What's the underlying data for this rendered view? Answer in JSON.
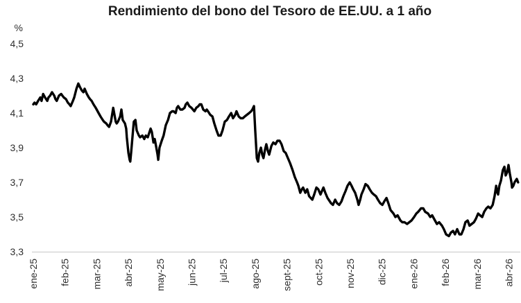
{
  "chart_data": {
    "type": "line",
    "title": "Rendimiento del bono del Tesoro de EE.UU. a 1 año",
    "xlabel": "",
    "ylabel": "%",
    "grid": false,
    "legend": "none",
    "background_color": "#ffffff",
    "line_color": "#000000",
    "axis_line_color": "#d0d0d0",
    "text_color": "#2e2e2e",
    "title_color": "#1a1a1a",
    "y_axis": {
      "unit_label": "%",
      "decimal_separator": ",",
      "tick_labels": [
        "4,5",
        "4,3",
        "4,1",
        "3,9",
        "3,7",
        "3,5",
        "3,3"
      ],
      "tick_values": [
        4.5,
        4.3,
        4.1,
        3.9,
        3.7,
        3.5,
        3.3
      ],
      "ylim": [
        3.3,
        4.5
      ]
    },
    "x_axis": {
      "unit": "month",
      "tick_labels": [
        "ene-25",
        "feb-25",
        "mar-25",
        "abr-25",
        "may-25",
        "jun-25",
        "jul-25",
        "ago-25",
        "sept-25",
        "oct-25",
        "nov-25",
        "dic-25",
        "ene-26",
        "feb-26",
        "mar-26",
        "abr-26"
      ],
      "xlim_month_index": [
        0,
        15.29
      ]
    },
    "series": [
      {
        "x_unit": "months since ene-25",
        "y_unit": "percent",
        "points": [
          [
            0.0,
            4.15
          ],
          [
            0.04,
            4.16
          ],
          [
            0.09,
            4.15
          ],
          [
            0.15,
            4.17
          ],
          [
            0.22,
            4.19
          ],
          [
            0.26,
            4.17
          ],
          [
            0.31,
            4.21
          ],
          [
            0.37,
            4.19
          ],
          [
            0.44,
            4.17
          ],
          [
            0.48,
            4.19
          ],
          [
            0.53,
            4.2
          ],
          [
            0.59,
            4.22
          ],
          [
            0.66,
            4.2
          ],
          [
            0.7,
            4.18
          ],
          [
            0.74,
            4.17
          ],
          [
            0.81,
            4.2
          ],
          [
            0.88,
            4.21
          ],
          [
            0.92,
            4.2
          ],
          [
            0.96,
            4.19
          ],
          [
            1.03,
            4.18
          ],
          [
            1.09,
            4.16
          ],
          [
            1.14,
            4.15
          ],
          [
            1.18,
            4.14
          ],
          [
            1.25,
            4.17
          ],
          [
            1.29,
            4.19
          ],
          [
            1.36,
            4.24
          ],
          [
            1.42,
            4.27
          ],
          [
            1.47,
            4.25
          ],
          [
            1.53,
            4.23
          ],
          [
            1.58,
            4.22
          ],
          [
            1.62,
            4.24
          ],
          [
            1.69,
            4.21
          ],
          [
            1.75,
            4.19
          ],
          [
            1.79,
            4.18
          ],
          [
            1.84,
            4.17
          ],
          [
            1.9,
            4.15
          ],
          [
            1.97,
            4.13
          ],
          [
            2.06,
            4.1
          ],
          [
            2.12,
            4.08
          ],
          [
            2.19,
            4.06
          ],
          [
            2.23,
            4.05
          ],
          [
            2.3,
            4.04
          ],
          [
            2.34,
            4.03
          ],
          [
            2.39,
            4.02
          ],
          [
            2.45,
            4.05
          ],
          [
            2.52,
            4.13
          ],
          [
            2.56,
            4.09
          ],
          [
            2.6,
            4.05
          ],
          [
            2.63,
            4.04
          ],
          [
            2.67,
            4.05
          ],
          [
            2.74,
            4.08
          ],
          [
            2.78,
            4.12
          ],
          [
            2.82,
            4.06
          ],
          [
            2.89,
            4.04
          ],
          [
            2.93,
            4.01
          ],
          [
            2.95,
            3.96
          ],
          [
            3.0,
            3.87
          ],
          [
            3.04,
            3.83
          ],
          [
            3.06,
            3.82
          ],
          [
            3.09,
            3.88
          ],
          [
            3.15,
            4.01
          ],
          [
            3.17,
            4.05
          ],
          [
            3.22,
            4.06
          ],
          [
            3.26,
            4.0
          ],
          [
            3.33,
            3.97
          ],
          [
            3.37,
            3.96
          ],
          [
            3.44,
            3.97
          ],
          [
            3.5,
            3.95
          ],
          [
            3.55,
            3.97
          ],
          [
            3.61,
            3.96
          ],
          [
            3.7,
            4.01
          ],
          [
            3.74,
            3.99
          ],
          [
            3.79,
            3.93
          ],
          [
            3.83,
            3.95
          ],
          [
            3.87,
            3.91
          ],
          [
            3.92,
            3.86
          ],
          [
            3.94,
            3.83
          ],
          [
            3.98,
            3.9
          ],
          [
            4.05,
            3.94
          ],
          [
            4.11,
            3.97
          ],
          [
            4.18,
            4.03
          ],
          [
            4.25,
            4.06
          ],
          [
            4.31,
            4.1
          ],
          [
            4.38,
            4.11
          ],
          [
            4.42,
            4.11
          ],
          [
            4.49,
            4.1
          ],
          [
            4.53,
            4.13
          ],
          [
            4.57,
            4.14
          ],
          [
            4.64,
            4.12
          ],
          [
            4.7,
            4.12
          ],
          [
            4.77,
            4.13
          ],
          [
            4.81,
            4.15
          ],
          [
            4.86,
            4.16
          ],
          [
            4.92,
            4.14
          ],
          [
            4.99,
            4.13
          ],
          [
            5.08,
            4.11
          ],
          [
            5.14,
            4.13
          ],
          [
            5.21,
            4.14
          ],
          [
            5.25,
            4.15
          ],
          [
            5.3,
            4.15
          ],
          [
            5.36,
            4.12
          ],
          [
            5.43,
            4.11
          ],
          [
            5.47,
            4.12
          ],
          [
            5.51,
            4.11
          ],
          [
            5.58,
            4.09
          ],
          [
            5.65,
            4.08
          ],
          [
            5.71,
            4.04
          ],
          [
            5.78,
            4.0
          ],
          [
            5.84,
            3.97
          ],
          [
            5.91,
            3.97
          ],
          [
            5.97,
            4.0
          ],
          [
            6.04,
            4.05
          ],
          [
            6.11,
            4.06
          ],
          [
            6.17,
            4.08
          ],
          [
            6.24,
            4.1
          ],
          [
            6.3,
            4.07
          ],
          [
            6.37,
            4.09
          ],
          [
            6.41,
            4.11
          ],
          [
            6.48,
            4.08
          ],
          [
            6.54,
            4.07
          ],
          [
            6.61,
            4.07
          ],
          [
            6.67,
            4.08
          ],
          [
            6.74,
            4.09
          ],
          [
            6.81,
            4.1
          ],
          [
            6.87,
            4.11
          ],
          [
            6.91,
            4.12
          ],
          [
            6.96,
            4.14
          ],
          [
            7.0,
            4.0
          ],
          [
            7.05,
            3.84
          ],
          [
            7.09,
            3.82
          ],
          [
            7.13,
            3.87
          ],
          [
            7.18,
            3.9
          ],
          [
            7.22,
            3.86
          ],
          [
            7.26,
            3.84
          ],
          [
            7.31,
            3.89
          ],
          [
            7.35,
            3.92
          ],
          [
            7.4,
            3.88
          ],
          [
            7.44,
            3.86
          ],
          [
            7.51,
            3.91
          ],
          [
            7.57,
            3.93
          ],
          [
            7.64,
            3.92
          ],
          [
            7.7,
            3.94
          ],
          [
            7.77,
            3.94
          ],
          [
            7.83,
            3.92
          ],
          [
            7.9,
            3.88
          ],
          [
            7.96,
            3.87
          ],
          [
            8.03,
            3.84
          ],
          [
            8.1,
            3.81
          ],
          [
            8.14,
            3.79
          ],
          [
            8.18,
            3.77
          ],
          [
            8.25,
            3.73
          ],
          [
            8.32,
            3.7
          ],
          [
            8.36,
            3.68
          ],
          [
            8.42,
            3.64
          ],
          [
            8.47,
            3.66
          ],
          [
            8.51,
            3.67
          ],
          [
            8.58,
            3.64
          ],
          [
            8.64,
            3.66
          ],
          [
            8.7,
            3.62
          ],
          [
            8.8,
            3.6
          ],
          [
            8.86,
            3.63
          ],
          [
            8.93,
            3.67
          ],
          [
            8.99,
            3.66
          ],
          [
            9.06,
            3.63
          ],
          [
            9.15,
            3.67
          ],
          [
            9.21,
            3.64
          ],
          [
            9.28,
            3.61
          ],
          [
            9.39,
            3.58
          ],
          [
            9.45,
            3.57
          ],
          [
            9.52,
            3.6
          ],
          [
            9.58,
            3.58
          ],
          [
            9.65,
            3.57
          ],
          [
            9.72,
            3.59
          ],
          [
            9.78,
            3.62
          ],
          [
            9.85,
            3.65
          ],
          [
            9.91,
            3.68
          ],
          [
            9.98,
            3.7
          ],
          [
            10.04,
            3.68
          ],
          [
            10.09,
            3.66
          ],
          [
            10.15,
            3.64
          ],
          [
            10.22,
            3.6
          ],
          [
            10.26,
            3.57
          ],
          [
            10.31,
            3.6
          ],
          [
            10.35,
            3.63
          ],
          [
            10.42,
            3.66
          ],
          [
            10.48,
            3.69
          ],
          [
            10.55,
            3.68
          ],
          [
            10.61,
            3.66
          ],
          [
            10.68,
            3.64
          ],
          [
            10.74,
            3.63
          ],
          [
            10.81,
            3.62
          ],
          [
            10.87,
            3.6
          ],
          [
            10.94,
            3.58
          ],
          [
            11.01,
            3.57
          ],
          [
            11.07,
            3.59
          ],
          [
            11.14,
            3.61
          ],
          [
            11.2,
            3.58
          ],
          [
            11.27,
            3.54
          ],
          [
            11.36,
            3.52
          ],
          [
            11.42,
            3.5
          ],
          [
            11.49,
            3.51
          ],
          [
            11.58,
            3.48
          ],
          [
            11.64,
            3.47
          ],
          [
            11.71,
            3.47
          ],
          [
            11.79,
            3.46
          ],
          [
            11.86,
            3.47
          ],
          [
            11.93,
            3.48
          ],
          [
            12.01,
            3.5
          ],
          [
            12.08,
            3.52
          ],
          [
            12.14,
            3.53
          ],
          [
            12.23,
            3.55
          ],
          [
            12.3,
            3.55
          ],
          [
            12.36,
            3.53
          ],
          [
            12.45,
            3.52
          ],
          [
            12.52,
            3.5
          ],
          [
            12.58,
            3.51
          ],
          [
            12.67,
            3.48
          ],
          [
            12.73,
            3.46
          ],
          [
            12.8,
            3.47
          ],
          [
            12.89,
            3.45
          ],
          [
            12.95,
            3.43
          ],
          [
            13.02,
            3.4
          ],
          [
            13.11,
            3.39
          ],
          [
            13.17,
            3.41
          ],
          [
            13.24,
            3.42
          ],
          [
            13.3,
            3.4
          ],
          [
            13.37,
            3.43
          ],
          [
            13.44,
            3.4
          ],
          [
            13.5,
            3.4
          ],
          [
            13.57,
            3.43
          ],
          [
            13.63,
            3.47
          ],
          [
            13.7,
            3.48
          ],
          [
            13.76,
            3.45
          ],
          [
            13.83,
            3.46
          ],
          [
            13.9,
            3.47
          ],
          [
            13.96,
            3.49
          ],
          [
            14.03,
            3.52
          ],
          [
            14.09,
            3.51
          ],
          [
            14.16,
            3.5
          ],
          [
            14.22,
            3.53
          ],
          [
            14.29,
            3.55
          ],
          [
            14.35,
            3.56
          ],
          [
            14.42,
            3.55
          ],
          [
            14.49,
            3.57
          ],
          [
            14.55,
            3.62
          ],
          [
            14.6,
            3.68
          ],
          [
            14.64,
            3.64
          ],
          [
            14.66,
            3.63
          ],
          [
            14.7,
            3.68
          ],
          [
            14.75,
            3.71
          ],
          [
            14.81,
            3.77
          ],
          [
            14.86,
            3.79
          ],
          [
            14.9,
            3.74
          ],
          [
            14.95,
            3.76
          ],
          [
            14.99,
            3.8
          ],
          [
            15.03,
            3.75
          ],
          [
            15.08,
            3.7
          ],
          [
            15.1,
            3.67
          ],
          [
            15.14,
            3.68
          ],
          [
            15.18,
            3.7
          ],
          [
            15.25,
            3.72
          ],
          [
            15.29,
            3.7
          ]
        ]
      }
    ]
  }
}
